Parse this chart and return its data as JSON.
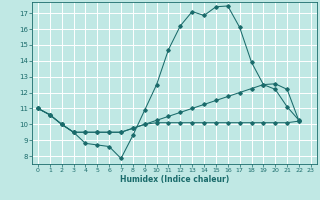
{
  "background_color": "#c0e8e4",
  "grid_color": "#ffffff",
  "line_color": "#1a6b6b",
  "xlabel": "Humidex (Indice chaleur)",
  "xlim": [
    -0.5,
    23.5
  ],
  "ylim": [
    7.5,
    17.7
  ],
  "xticks": [
    0,
    1,
    2,
    3,
    4,
    5,
    6,
    7,
    8,
    9,
    10,
    11,
    12,
    13,
    14,
    15,
    16,
    17,
    18,
    19,
    20,
    21,
    22,
    23
  ],
  "yticks": [
    8,
    9,
    10,
    11,
    12,
    13,
    14,
    15,
    16,
    17
  ],
  "line1_y": [
    11.0,
    10.6,
    10.0,
    9.5,
    8.8,
    8.7,
    8.6,
    7.85,
    9.3,
    10.9,
    12.5,
    14.7,
    16.2,
    17.1,
    16.85,
    17.4,
    17.45,
    16.1,
    13.9,
    12.5,
    12.2,
    11.1,
    10.25
  ],
  "line2_y": [
    11.0,
    10.6,
    10.0,
    9.5,
    9.5,
    9.5,
    9.5,
    9.5,
    9.75,
    10.0,
    10.25,
    10.5,
    10.75,
    11.0,
    11.25,
    11.5,
    11.75,
    12.0,
    12.25,
    12.5,
    12.55,
    12.2,
    10.2
  ],
  "line3_y": [
    11.0,
    10.6,
    10.0,
    9.5,
    9.5,
    9.5,
    9.5,
    9.5,
    9.75,
    10.0,
    10.1,
    10.1,
    10.1,
    10.1,
    10.1,
    10.1,
    10.1,
    10.1,
    10.1,
    10.1,
    10.1,
    10.1,
    10.2
  ]
}
